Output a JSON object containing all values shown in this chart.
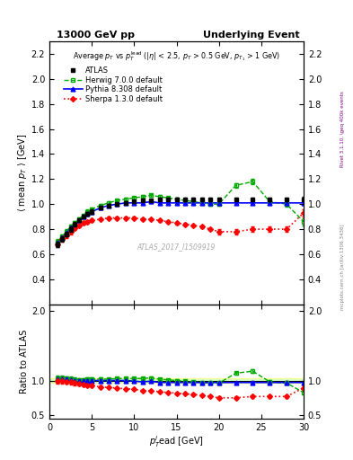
{
  "title_left": "13000 GeV pp",
  "title_right": "Underlying Event",
  "ylabel_main": "\\langle mean p_{T} \\rangle [GeV]",
  "ylabel_ratio": "Ratio to ATLAS",
  "xlabel": "p_{T}^{lead} [GeV]",
  "watermark": "ATLAS_2017_I1509919",
  "right_label1": "Rivet 3.1.10, \\geq 400k events",
  "right_label2": "mcplots.cern.ch [arXiv:1306.3436]",
  "ylim_main": [
    0.2,
    2.3
  ],
  "ylim_ratio": [
    0.45,
    2.1
  ],
  "yticks_main": [
    0.4,
    0.6,
    0.8,
    1.0,
    1.2,
    1.4,
    1.6,
    1.8,
    2.0,
    2.2
  ],
  "yticks_ratio": [
    0.5,
    1.0,
    2.0
  ],
  "xlim": [
    0,
    30
  ],
  "atlas_x": [
    1.0,
    1.5,
    2.0,
    2.5,
    3.0,
    3.5,
    4.0,
    4.5,
    5.0,
    6.0,
    7.0,
    8.0,
    9.0,
    10.0,
    11.0,
    12.0,
    13.0,
    14.0,
    15.0,
    16.0,
    17.0,
    18.0,
    19.0,
    20.0,
    22.0,
    24.0,
    26.0,
    28.0,
    30.0
  ],
  "atlas_y": [
    0.68,
    0.72,
    0.76,
    0.8,
    0.84,
    0.87,
    0.9,
    0.92,
    0.94,
    0.97,
    0.99,
    1.0,
    1.01,
    1.02,
    1.03,
    1.03,
    1.04,
    1.04,
    1.04,
    1.04,
    1.04,
    1.04,
    1.04,
    1.04,
    1.04,
    1.04,
    1.04,
    1.04,
    1.04
  ],
  "atlas_yerr": [
    0.02,
    0.02,
    0.02,
    0.02,
    0.02,
    0.015,
    0.015,
    0.015,
    0.015,
    0.015,
    0.01,
    0.01,
    0.01,
    0.01,
    0.01,
    0.01,
    0.01,
    0.01,
    0.01,
    0.01,
    0.01,
    0.01,
    0.01,
    0.01,
    0.01,
    0.015,
    0.015,
    0.015,
    0.02
  ],
  "herwig_x": [
    1.0,
    1.5,
    2.0,
    2.5,
    3.0,
    3.5,
    4.0,
    4.5,
    5.0,
    6.0,
    7.0,
    8.0,
    9.0,
    10.0,
    11.0,
    12.0,
    13.0,
    14.0,
    15.0,
    16.0,
    17.0,
    18.0,
    19.0,
    20.0,
    22.0,
    24.0,
    26.0,
    28.0,
    30.0
  ],
  "herwig_y": [
    0.7,
    0.74,
    0.78,
    0.82,
    0.85,
    0.88,
    0.91,
    0.94,
    0.96,
    0.99,
    1.01,
    1.03,
    1.04,
    1.05,
    1.06,
    1.07,
    1.06,
    1.05,
    1.04,
    1.03,
    1.02,
    1.01,
    1.0,
    1.0,
    1.15,
    1.18,
    1.02,
    1.0,
    0.86
  ],
  "herwig_yerr": [
    0.02,
    0.02,
    0.02,
    0.02,
    0.015,
    0.015,
    0.015,
    0.015,
    0.01,
    0.01,
    0.01,
    0.01,
    0.01,
    0.01,
    0.01,
    0.01,
    0.01,
    0.01,
    0.01,
    0.01,
    0.01,
    0.01,
    0.01,
    0.01,
    0.02,
    0.02,
    0.02,
    0.02,
    0.03
  ],
  "pythia_x": [
    1.0,
    1.5,
    2.0,
    2.5,
    3.0,
    3.5,
    4.0,
    4.5,
    5.0,
    6.0,
    7.0,
    8.0,
    9.0,
    10.0,
    11.0,
    12.0,
    13.0,
    14.0,
    15.0,
    16.0,
    17.0,
    18.0,
    19.0,
    20.0,
    22.0,
    24.0,
    26.0,
    28.0,
    30.0
  ],
  "pythia_y": [
    0.69,
    0.73,
    0.77,
    0.81,
    0.84,
    0.87,
    0.9,
    0.92,
    0.94,
    0.97,
    0.99,
    1.0,
    1.01,
    1.01,
    1.01,
    1.02,
    1.01,
    1.01,
    1.01,
    1.01,
    1.01,
    1.01,
    1.01,
    1.01,
    1.01,
    1.01,
    1.01,
    1.01,
    1.01
  ],
  "pythia_yerr": [
    0.02,
    0.02,
    0.02,
    0.02,
    0.015,
    0.015,
    0.015,
    0.015,
    0.01,
    0.01,
    0.01,
    0.01,
    0.01,
    0.01,
    0.01,
    0.01,
    0.01,
    0.01,
    0.01,
    0.01,
    0.01,
    0.01,
    0.01,
    0.01,
    0.01,
    0.01,
    0.01,
    0.01,
    0.015
  ],
  "sherpa_x": [
    1.0,
    1.5,
    2.0,
    2.5,
    3.0,
    3.5,
    4.0,
    4.5,
    5.0,
    6.0,
    7.0,
    8.0,
    9.0,
    10.0,
    11.0,
    12.0,
    13.0,
    14.0,
    15.0,
    16.0,
    17.0,
    18.0,
    19.0,
    20.0,
    22.0,
    24.0,
    26.0,
    28.0,
    30.0
  ],
  "sherpa_y": [
    0.68,
    0.72,
    0.75,
    0.78,
    0.81,
    0.83,
    0.85,
    0.86,
    0.87,
    0.88,
    0.89,
    0.89,
    0.89,
    0.89,
    0.88,
    0.88,
    0.87,
    0.86,
    0.85,
    0.84,
    0.83,
    0.82,
    0.8,
    0.78,
    0.78,
    0.8,
    0.8,
    0.8,
    0.93
  ],
  "sherpa_yerr": [
    0.02,
    0.02,
    0.02,
    0.02,
    0.015,
    0.015,
    0.015,
    0.015,
    0.01,
    0.01,
    0.01,
    0.01,
    0.01,
    0.01,
    0.01,
    0.01,
    0.01,
    0.01,
    0.01,
    0.01,
    0.01,
    0.01,
    0.01,
    0.02,
    0.02,
    0.02,
    0.02,
    0.02,
    0.03
  ],
  "atlas_color": "#000000",
  "herwig_color": "#00aa00",
  "pythia_color": "#0000ff",
  "sherpa_color": "#ff0000",
  "legend_entries": [
    "ATLAS",
    "Herwig 7.0.0 default",
    "Pythia 8.308 default",
    "Sherpa 1.3.0 default"
  ]
}
